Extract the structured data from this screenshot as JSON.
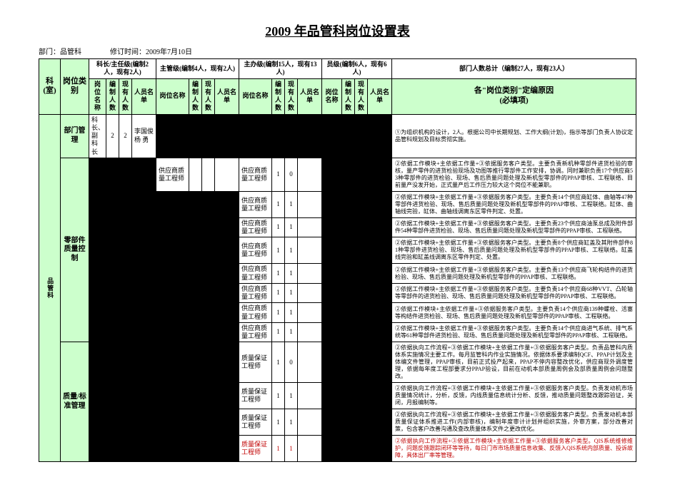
{
  "title": "2009 年品管科岗位设置表",
  "meta": {
    "dept_label": "部门：品管科",
    "rev_label": "修订时间：2009年7月10日"
  },
  "header": {
    "col_ke": "科(室)",
    "col_cat": "岗位类别",
    "grp_kz": "科长/主任级(编制2人，现有2人)",
    "grp_zg": "主管级(编制4人，现有2人)",
    "grp_zb": "主办级(编制15人，现有13人)",
    "grp_yj": "员级(编制6人，现有6人)",
    "grp_total": "部门人数总计（编制27人，现有23人）",
    "sub_name": "岗位名称",
    "sub_plan": "编制人数",
    "sub_cur": "现有人数",
    "sub_list": "人员名单",
    "reason_l1": "各\"岗位类别\"定编原因",
    "reason_l2": "(必填项)"
  },
  "ke_name": "品管科",
  "rows": [
    {
      "cat": "部门管理",
      "kz": {
        "name": "科长、副科长",
        "plan": "2",
        "cur": "2",
        "list": "李国俊 杨 勇"
      },
      "reason": "①为组织机构的设计，2人。根据公司中长期规划、工作大纲(计划)，指示等部门负责人协议定品管科规划及目标贯彻实施。"
    },
    {
      "cat": "零部件质量控制",
      "cat_span": 8,
      "zg": {
        "name": "供应商质量工程师",
        "plan": "",
        "cur": "",
        "list": ""
      },
      "zb": {
        "name": "供应商质量工程师",
        "plan": "1",
        "cur": "0",
        "list": ""
      },
      "reason": "②依据工作模块+主依据工作量+③依据服务客户类型。主要负责新机种零部件进货检验的审核，量产零件的进货检验现场及功图等推行零部件工作安排，协调。同时兼职负责17个供应商53种零部件的进货检验、现场、售后质量问题处理及新机型零部件的PPAP审核、工程联络、目前量产没发开始，正式量产后工作压力较大这个岗位不能兼职。"
    },
    {
      "zb": {
        "name": "供应商质量工程师",
        "plan": "1",
        "cur": "1",
        "list": ""
      },
      "reason": "②依据工作模块+主依据工作量+③依据服务客户类型。主要负责14个供应商缸体、曲轴等47种零部件进货检验、现场、售后质量问题处理及新机型零部件的PPAP审核、工程联络。缸体、曲轴线完验，缸体、曲轴线调离东区零件判定、处置。"
    },
    {
      "zb": {
        "name": "供应商质量工程师",
        "plan": "1",
        "cur": "1",
        "list": ""
      },
      "reason": "②依据工作模块+主依据工作量+③依据服务客户类型。主要负责23个供应商油泵总成及附件部件54种零部件进货检验、现场、售后质量问题处理及新机型零部件的PPAP审核、工程联络。"
    },
    {
      "zb": {
        "name": "供应商质量工程师",
        "plan": "1",
        "cur": "1",
        "list": ""
      },
      "reason": "②依据工作模块+主依据工作量+③依据服务客户类型。主要负责8个供应商缸盖及其附件部件81种零部件进货检验、现场、售后质量问题处理及新机型零部件的PPAP审核、工程联络。缸盖线完验和缸盖线调离东区零件判定、处置。"
    },
    {
      "zb": {
        "name": "供应商质量工程师",
        "plan": "1",
        "cur": "1",
        "list": ""
      },
      "reason": "②依据工作模块+主依据工作量+③依据服务客户类型。主要负责13个供应商飞轮构结件的进货检验、现场、售后质量问题处理及新机型零部件的PPAP审核、工程联络。"
    },
    {
      "zb": {
        "name": "供应商质量工程师",
        "plan": "1",
        "cur": "1",
        "list": ""
      },
      "reason": "②依据工作模块+主依据工作量+③依据服务客户类型。主要负责14个供应商68种VVT、凸轮轴等零部件的进货检验、现场、售后质量问题处理及新机型零部件的PPAP审核、工程联络。"
    },
    {
      "zb": {
        "name": "供应商质量工程师",
        "plan": "1",
        "cur": "1",
        "list": ""
      },
      "reason": "②依据工作模块+主依据工作量+③依据服务客户类型。主要负责14个供应商139种螺栓、活塞等构结件进货检验、现场、售后质量问题处理及新机型零部件的PPAP审核、工程联络。"
    },
    {
      "zb": {
        "name": "供应商质量工程师",
        "plan": "1",
        "cur": "1",
        "list": ""
      },
      "reason": "②依据工作模块+主依据工作量+③依据服务客户类型。主要负责14个供应商进气系统、排气系统等61种零部件进货检验、现场、售后质量问题处理及新机型零部件的PPAP审核、工程联络。"
    },
    {
      "cat": "质量/标准管理",
      "cat_span": 4,
      "zb": {
        "name": "质量保证工程师",
        "plan": "1",
        "cur": "0",
        "list": ""
      },
      "reason": "②依据执向工作流程+③依据工作模块+主依据工作量+③依据服务客户类型。负责品管科内质体系实施情况主要工作。每月监管科内作业实施情况。依据体系要求编制QCF、PPAP计划及主体编文件管理，PPAP审核，目前正式投产起来，PPAP不停内容整改优化，供应商现外调度管理，依据每年度工程部要求分PPAP验设，目前在动机本部质量周例会及部质量周例会问题整改。"
    },
    {
      "zb": {
        "name": "质量保证工程师",
        "plan": "1",
        "cur": "1",
        "list": ""
      },
      "reason": "②依据执向工作流程+③依据工作模块+主依据工作量+③依据服务客户类型。负责发动机市场质量情况统计，分析，反馈，内线质量信息统计分析、反馈，推动质量问题整改跟踪验证，关闭，月报编制等。"
    },
    {
      "zb": {
        "name": "质量保证工程师",
        "plan": "1",
        "cur": "1",
        "list": ""
      },
      "reason": "②依据执向工作流程+③依据工作模块+主依据工作量+③依据服务客户类型。负责发动机本部质量保证体系推进工作(内部审核)，编制年度审计计划并组织实施，外审方案，部分改善对策，包含客户改善沟通及查改质量体系文件之更改优化。"
    },
    {
      "zb": {
        "name": "质量保证工程师",
        "plan": "1",
        "cur": "1",
        "list": ""
      },
      "zb_red": true,
      "reason": "②依据执向工作流程+③依据工作模块+主依据工作量+③依据服务客户类型。QIS系统维修维护，问题反馈跟踪闭环等等待，每日门市市场质量信息收集、反馈入QIS系统内部质量、投诉故障，具体出厂率等管理。",
      "reason_red": true
    }
  ]
}
